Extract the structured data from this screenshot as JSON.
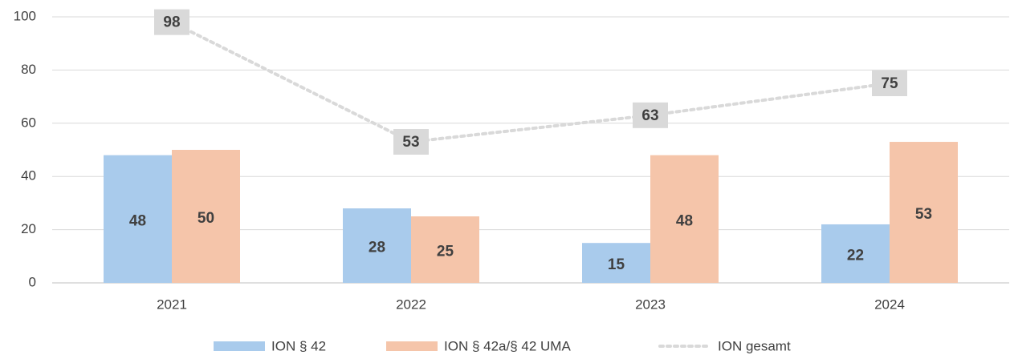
{
  "chart_data": {
    "type": "bar",
    "categories": [
      "2021",
      "2022",
      "2023",
      "2024"
    ],
    "series": [
      {
        "name": "ION § 42",
        "type": "bar",
        "color": "#a9cbec",
        "values": [
          48,
          28,
          15,
          22
        ]
      },
      {
        "name": "ION § 42a/§ 42 UMA",
        "type": "bar",
        "color": "#f5c5aa",
        "values": [
          50,
          25,
          48,
          53
        ]
      },
      {
        "name": "ION gesamt",
        "type": "line",
        "color": "#d9d9d9",
        "values": [
          98,
          53,
          63,
          75
        ]
      }
    ],
    "ylim": [
      0,
      100
    ],
    "yticks": [
      0,
      20,
      40,
      60,
      80,
      100
    ],
    "grid": true,
    "legend": "bottom"
  }
}
